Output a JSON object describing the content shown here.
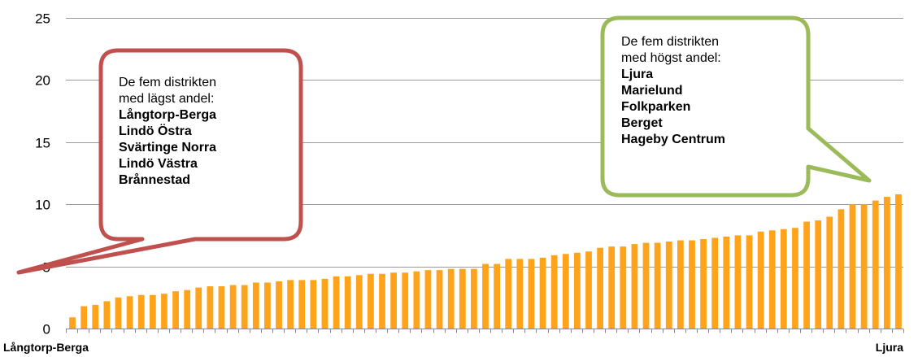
{
  "chart_data": {
    "type": "bar",
    "x_start_label": "Långtorp-Berga",
    "x_end_label": "Ljura",
    "ylim": [
      0,
      25
    ],
    "yticks": [
      "0",
      "5",
      "10",
      "15",
      "20",
      "25"
    ],
    "grid": true,
    "bar_color": "#FFA31A",
    "values": [
      0.9,
      1.8,
      1.9,
      2.2,
      2.5,
      2.6,
      2.7,
      2.7,
      2.8,
      3.0,
      3.1,
      3.3,
      3.4,
      3.4,
      3.5,
      3.5,
      3.7,
      3.7,
      3.8,
      3.9,
      3.9,
      3.9,
      4.0,
      4.2,
      4.2,
      4.3,
      4.4,
      4.4,
      4.5,
      4.5,
      4.6,
      4.7,
      4.7,
      4.8,
      4.8,
      4.8,
      5.2,
      5.2,
      5.6,
      5.6,
      5.6,
      5.7,
      5.9,
      6.0,
      6.1,
      6.2,
      6.5,
      6.6,
      6.6,
      6.8,
      6.9,
      6.9,
      7.0,
      7.1,
      7.1,
      7.2,
      7.3,
      7.4,
      7.5,
      7.5,
      7.8,
      7.9,
      8.0,
      8.1,
      8.6,
      8.7,
      9.0,
      9.6,
      10.0,
      10.0,
      10.3,
      10.6,
      10.8
    ]
  },
  "callouts": {
    "low": {
      "intro": [
        "De fem distrikten",
        "med lägst andel:"
      ],
      "items": [
        "Långtorp-Berga",
        "Lindö Östra",
        "Svärtinge Norra",
        "Lindö Västra",
        "Brånnestad"
      ],
      "border_color": "#C0504D"
    },
    "high": {
      "intro": [
        "De fem distrikten",
        "med högst andel:"
      ],
      "items": [
        "Ljura",
        "Marielund",
        "Folkparken",
        "Berget",
        "Hageby Centrum"
      ],
      "border_color": "#9BBB59"
    }
  }
}
